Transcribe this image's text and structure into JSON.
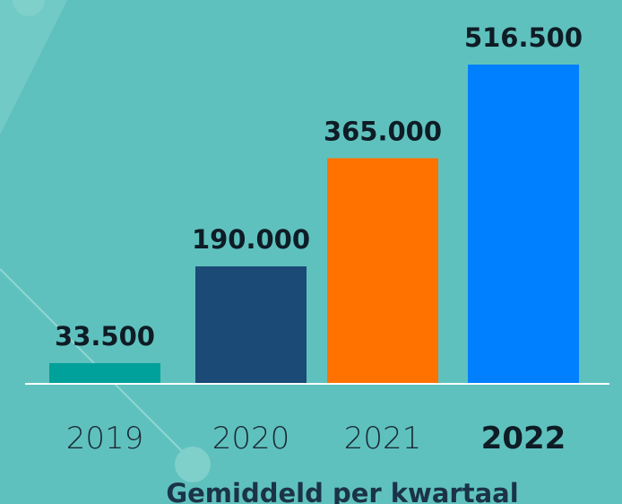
{
  "chart_data": {
    "type": "bar",
    "categories": [
      "2019",
      "2020",
      "2021",
      "2022"
    ],
    "values": [
      33500,
      190000,
      365000,
      516500
    ],
    "value_labels": [
      "33.500",
      "190.000",
      "365.000",
      "516.500"
    ],
    "colors": [
      "#00a19a",
      "#1a4a75",
      "#ff7200",
      "#0080ff"
    ],
    "x_label": "Gemiddeld per kwartaal"
  }
}
